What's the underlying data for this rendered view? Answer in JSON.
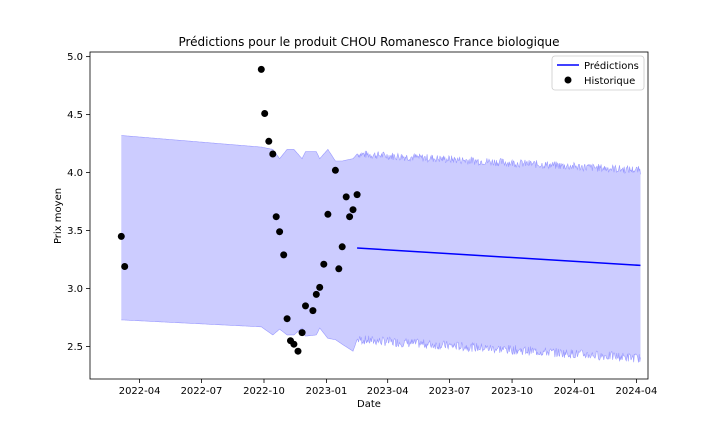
{
  "chart_data": {
    "type": "line",
    "title": "Prédictions pour le produit CHOU Romanesco France biologique",
    "xlabel": "Date",
    "ylabel": "Prix moyen",
    "xlim": [
      "2022-01-18",
      "2024-04-18"
    ],
    "ylim": [
      2.22,
      5.04
    ],
    "x_ticks": [
      "2022-04",
      "2022-07",
      "2022-10",
      "2023-01",
      "2023-04",
      "2023-07",
      "2023-10",
      "2024-01",
      "2024-04"
    ],
    "y_ticks": [
      "2.5",
      "3.0",
      "3.5",
      "4.0",
      "4.5",
      "5.0"
    ],
    "grid": false,
    "legend_position": "top-right",
    "colors": {
      "prediction": "#0000ff",
      "band": "#ccccff",
      "band_edge": "#9999ff",
      "history": "#000000"
    },
    "legend": [
      {
        "label": "Prédictions",
        "marker": "line"
      },
      {
        "label": "Historique",
        "marker": "dot"
      }
    ],
    "series": [
      {
        "name": "Historique",
        "kind": "scatter",
        "points": [
          [
            "2022-03-05",
            3.45
          ],
          [
            "2022-03-10",
            3.19
          ],
          [
            "2022-09-27",
            4.89
          ],
          [
            "2022-10-02",
            4.51
          ],
          [
            "2022-10-08",
            4.27
          ],
          [
            "2022-10-14",
            4.16
          ],
          [
            "2022-10-19",
            3.62
          ],
          [
            "2022-10-24",
            3.49
          ],
          [
            "2022-10-30",
            3.29
          ],
          [
            "2022-11-04",
            2.74
          ],
          [
            "2022-11-09",
            2.55
          ],
          [
            "2022-11-14",
            2.52
          ],
          [
            "2022-11-20",
            2.46
          ],
          [
            "2022-11-26",
            2.62
          ],
          [
            "2022-12-01",
            2.85
          ],
          [
            "2022-12-12",
            2.81
          ],
          [
            "2022-12-17",
            2.95
          ],
          [
            "2022-12-22",
            3.01
          ],
          [
            "2022-12-28",
            3.21
          ],
          [
            "2023-01-03",
            3.64
          ],
          [
            "2023-01-14",
            4.02
          ],
          [
            "2023-01-19",
            3.17
          ],
          [
            "2023-01-24",
            3.36
          ],
          [
            "2023-01-30",
            3.79
          ],
          [
            "2023-02-04",
            3.62
          ],
          [
            "2023-02-09",
            3.68
          ],
          [
            "2023-02-15",
            3.81
          ]
        ]
      },
      {
        "name": "Prédictions",
        "kind": "line",
        "points": [
          [
            "2023-02-15",
            3.35
          ],
          [
            "2024-04-07",
            3.2
          ]
        ]
      }
    ],
    "band": {
      "upper": [
        [
          "2022-03-05",
          4.32
        ],
        [
          "2022-09-27",
          4.22
        ],
        [
          "2022-10-14",
          4.2
        ],
        [
          "2022-10-24",
          4.12
        ],
        [
          "2022-11-04",
          4.2
        ],
        [
          "2022-11-14",
          4.2
        ],
        [
          "2022-11-26",
          4.12
        ],
        [
          "2022-12-01",
          4.18
        ],
        [
          "2022-12-17",
          4.18
        ],
        [
          "2022-12-22",
          4.12
        ],
        [
          "2023-01-03",
          4.2
        ],
        [
          "2023-01-14",
          4.1
        ],
        [
          "2023-01-24",
          4.1
        ],
        [
          "2023-02-09",
          4.12
        ],
        [
          "2023-02-15",
          4.16
        ],
        [
          "2024-04-07",
          4.02
        ]
      ],
      "lower": [
        [
          "2022-03-05",
          2.73
        ],
        [
          "2022-09-27",
          2.67
        ],
        [
          "2022-10-14",
          2.6
        ],
        [
          "2022-10-24",
          2.65
        ],
        [
          "2022-11-04",
          2.6
        ],
        [
          "2022-11-14",
          2.6
        ],
        [
          "2022-11-26",
          2.66
        ],
        [
          "2022-12-01",
          2.59
        ],
        [
          "2022-12-17",
          2.6
        ],
        [
          "2022-12-22",
          2.66
        ],
        [
          "2023-01-03",
          2.57
        ],
        [
          "2023-01-14",
          2.56
        ],
        [
          "2023-01-24",
          2.52
        ],
        [
          "2023-02-09",
          2.46
        ],
        [
          "2023-02-15",
          2.56
        ],
        [
          "2024-04-07",
          2.4
        ]
      ]
    }
  }
}
